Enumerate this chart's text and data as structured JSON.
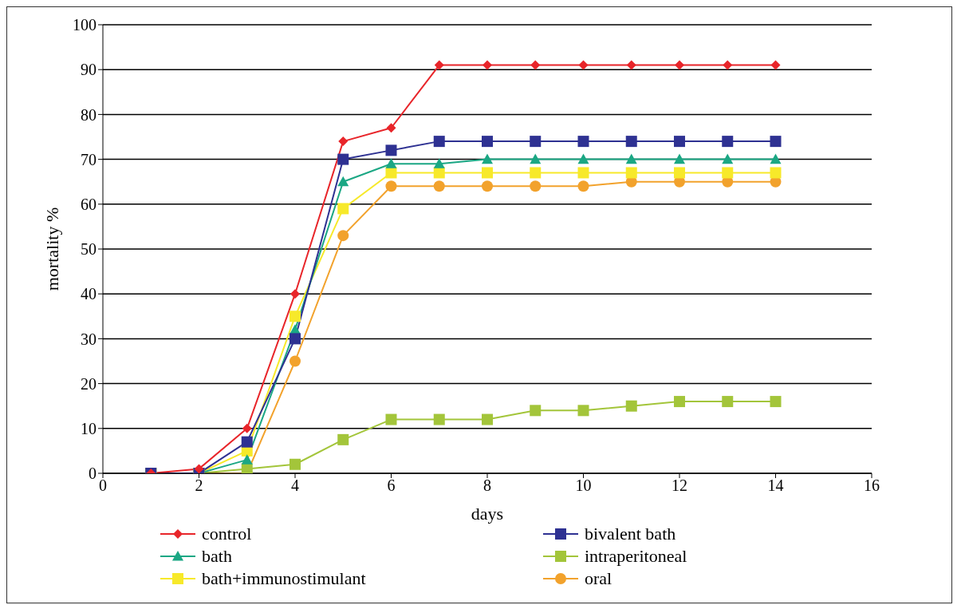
{
  "chart_data": {
    "type": "line",
    "xlabel": "days",
    "ylabel": "mortality %",
    "x": [
      1,
      2,
      3,
      4,
      5,
      6,
      7,
      8,
      9,
      10,
      11,
      12,
      13,
      14
    ],
    "xlim": [
      0,
      16
    ],
    "xticks": [
      0,
      2,
      4,
      6,
      8,
      10,
      12,
      14,
      16
    ],
    "ylim": [
      0,
      100
    ],
    "yticks": [
      0,
      10,
      20,
      30,
      40,
      50,
      60,
      70,
      80,
      90,
      100
    ],
    "grid": "y",
    "legend": "bottom",
    "series": [
      {
        "name": "control",
        "color": "#e8252a",
        "marker": "diamond",
        "values": [
          0,
          1,
          10,
          40,
          74,
          77,
          91,
          91,
          91,
          91,
          91,
          91,
          91,
          91
        ]
      },
      {
        "name": "bivalent bath",
        "color": "#2e3192",
        "marker": "square",
        "values": [
          0,
          0,
          7,
          30,
          70,
          72,
          74,
          74,
          74,
          74,
          74,
          74,
          74,
          74
        ]
      },
      {
        "name": "bath",
        "color": "#1ba784",
        "marker": "triangle",
        "values": [
          0,
          0,
          3,
          32,
          65,
          69,
          69,
          70,
          70,
          70,
          70,
          70,
          70,
          70
        ]
      },
      {
        "name": "intraperitoneal",
        "color": "#a3c53a",
        "marker": "square",
        "values": [
          0,
          0,
          1,
          2,
          7.5,
          12,
          12,
          12,
          14,
          14,
          15,
          16,
          16,
          16
        ]
      },
      {
        "name": "bath+immunostimulant",
        "color": "#f7e92a",
        "marker": "square",
        "values": [
          0,
          0,
          5,
          35,
          59,
          67,
          67,
          67,
          67,
          67,
          67,
          67,
          67,
          67
        ]
      },
      {
        "name": "oral",
        "color": "#f2a22c",
        "marker": "circle",
        "values": [
          0,
          0,
          0,
          25,
          53,
          64,
          64,
          64,
          64,
          64,
          65,
          65,
          65,
          65
        ]
      }
    ]
  }
}
